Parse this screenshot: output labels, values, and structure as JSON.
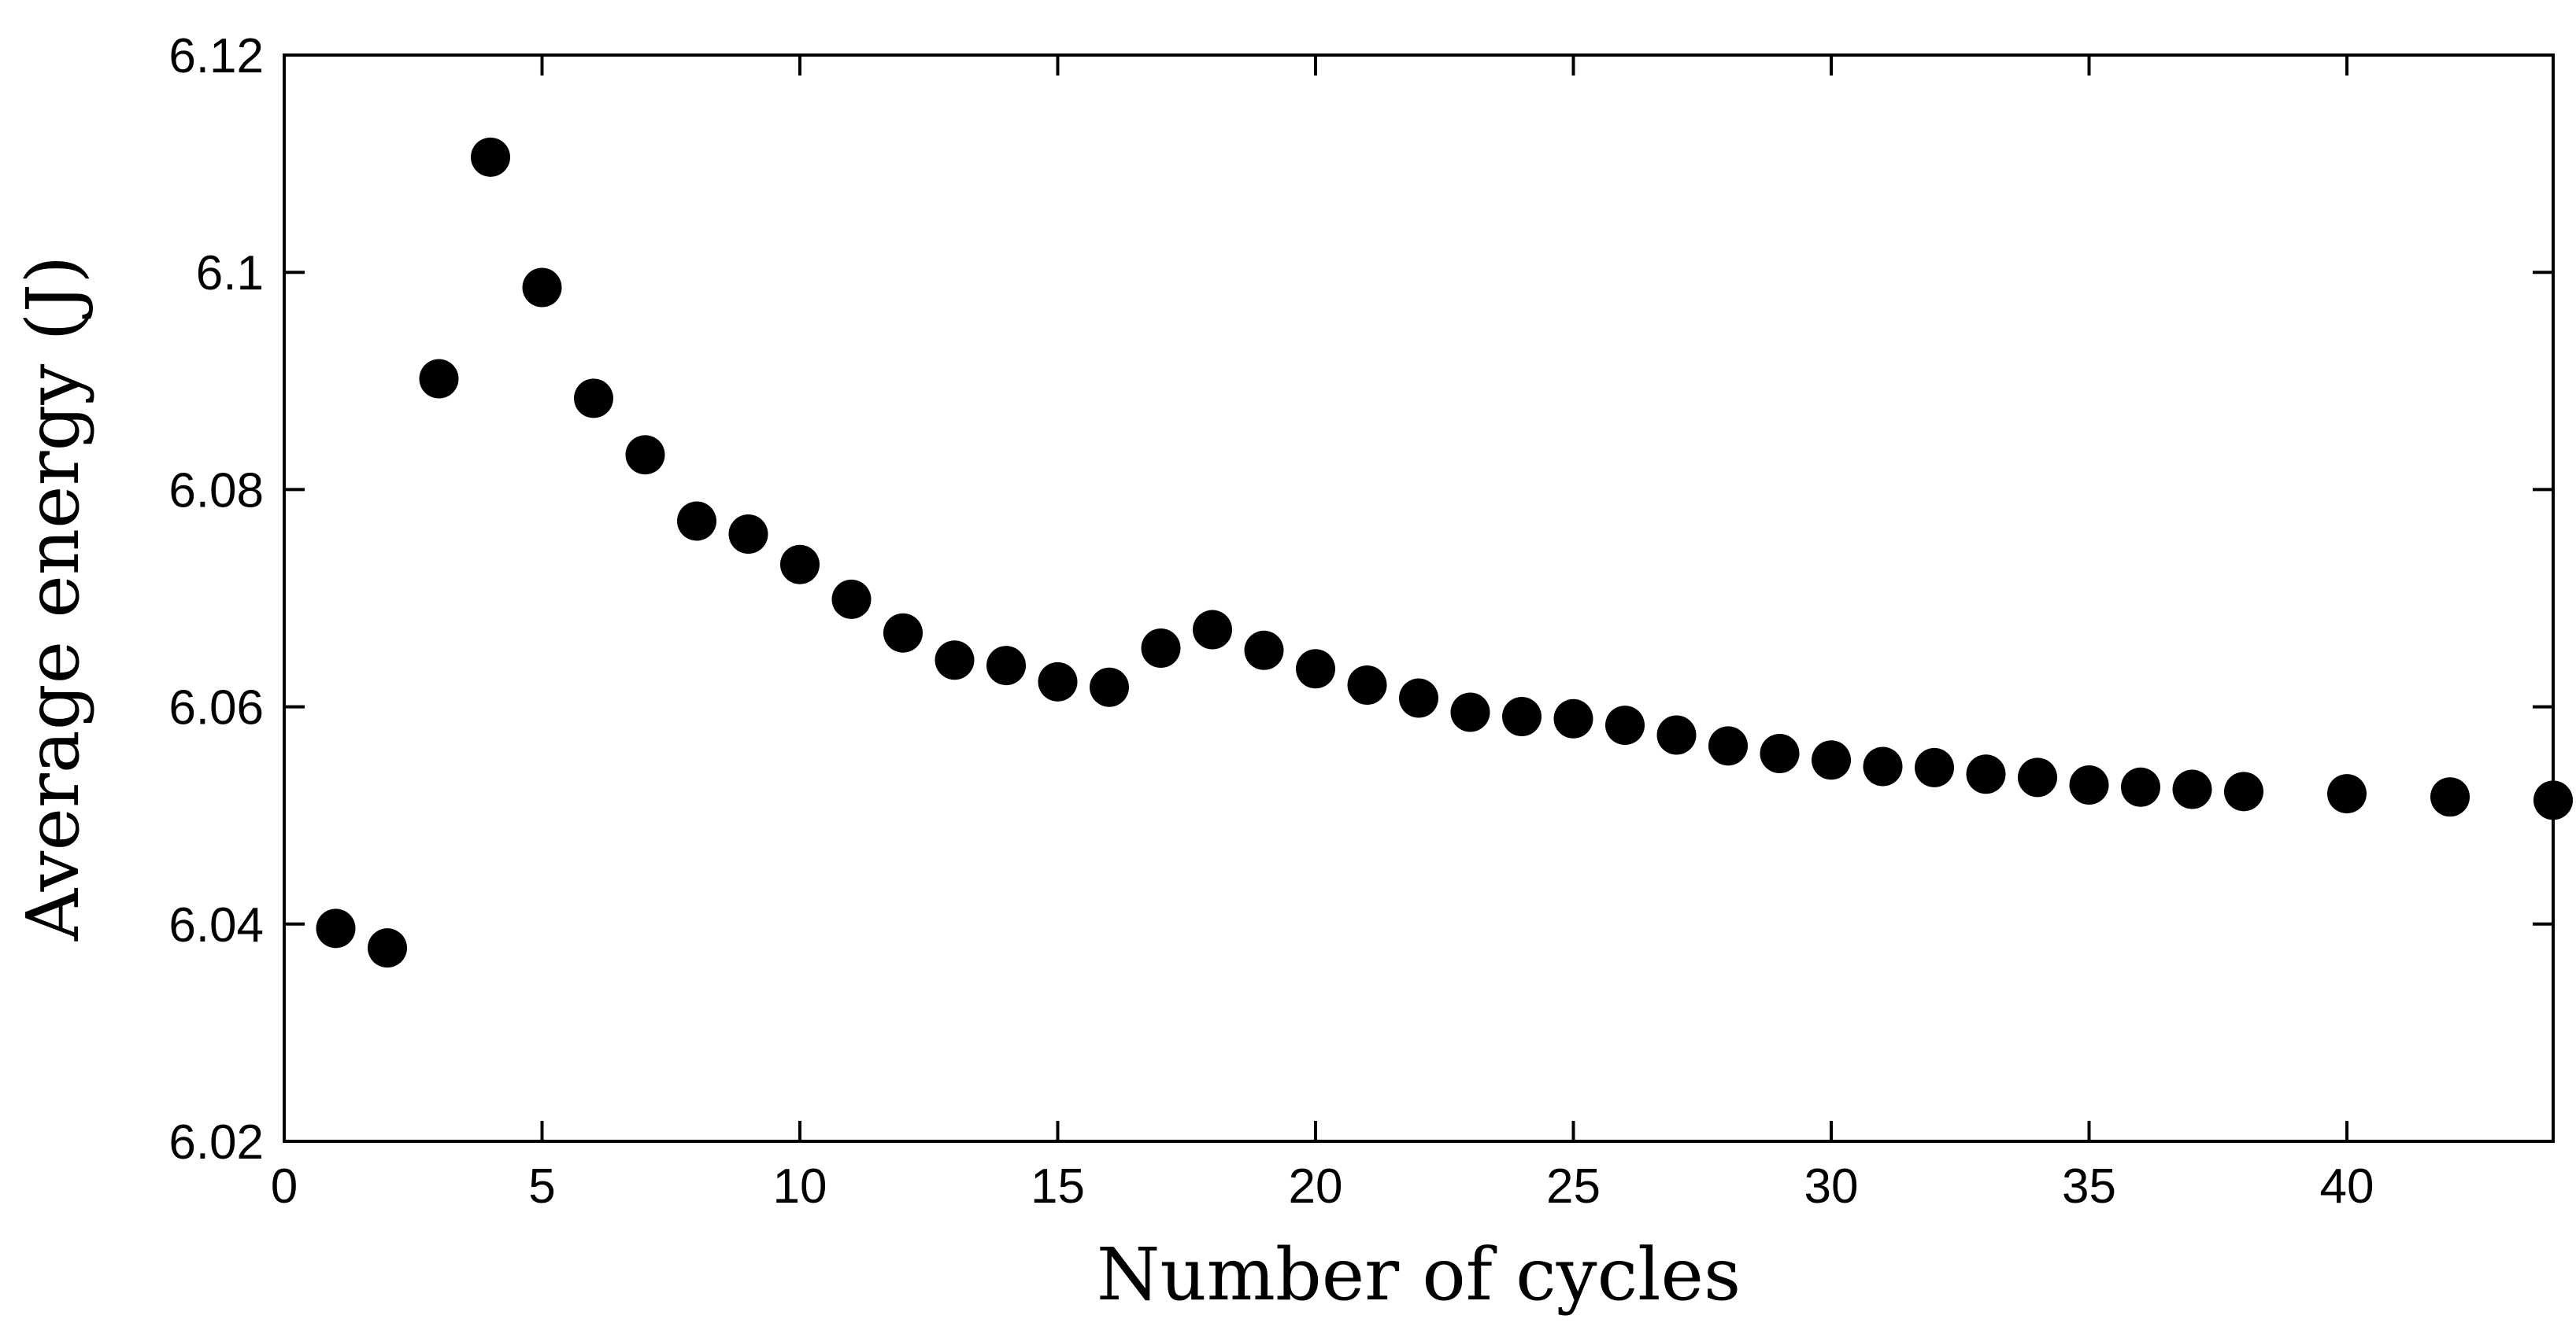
{
  "chart_data": {
    "type": "scatter",
    "title": "",
    "xlabel": "Number of cycles",
    "ylabel": "Average energy (J)",
    "xlim": [
      0,
      44
    ],
    "ylim": [
      6.02,
      6.12
    ],
    "xticks": [
      0,
      5,
      10,
      15,
      20,
      25,
      30,
      35,
      40
    ],
    "xtick_labels": [
      "0",
      "5",
      "10",
      "15",
      "20",
      "25",
      "30",
      "35",
      "40"
    ],
    "yticks": [
      6.02,
      6.04,
      6.06,
      6.08,
      6.1,
      6.12
    ],
    "ytick_labels": [
      "6.02",
      "6.04",
      "6.06",
      "6.08",
      "6.1",
      "6.12"
    ],
    "grid": false,
    "marker_color": "#000000",
    "series": [
      {
        "name": "Average energy",
        "x": [
          1,
          2,
          3,
          4,
          5,
          6,
          7,
          8,
          9,
          10,
          11,
          12,
          13,
          14,
          15,
          16,
          17,
          18,
          19,
          20,
          21,
          22,
          23,
          24,
          25,
          26,
          27,
          28,
          29,
          30,
          31,
          32,
          33,
          34,
          35,
          36,
          37,
          38,
          40,
          42,
          44
        ],
        "y": [
          6.0396,
          6.0378,
          6.0902,
          6.1106,
          6.0986,
          6.0884,
          6.0832,
          6.0771,
          6.0759,
          6.0731,
          6.0699,
          6.0668,
          6.0643,
          6.0638,
          6.0623,
          6.0618,
          6.0654,
          6.0671,
          6.0652,
          6.0635,
          6.062,
          6.0608,
          6.0595,
          6.0591,
          6.0589,
          6.0583,
          6.0574,
          6.0564,
          6.0557,
          6.0551,
          6.0545,
          6.0544,
          6.0538,
          6.0535,
          6.0528,
          6.0526,
          6.0524,
          6.0522,
          6.052,
          6.0517,
          6.0514
        ]
      }
    ]
  }
}
